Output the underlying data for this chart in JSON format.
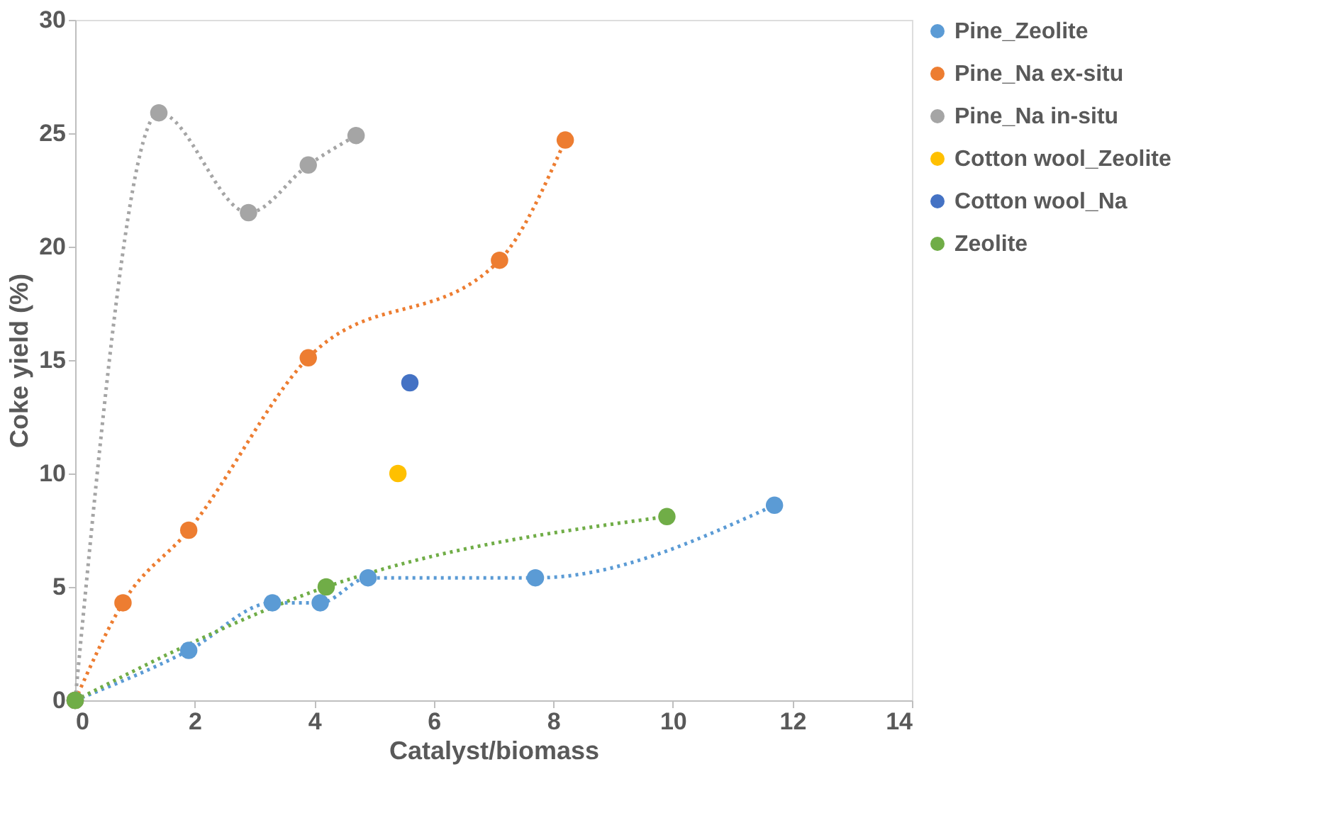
{
  "chart_data": {
    "type": "line",
    "xlabel": "Catalyst/biomass",
    "ylabel": "Coke yield (%)",
    "xlim": [
      0,
      14
    ],
    "xticks": [
      0,
      2,
      4,
      6,
      8,
      10,
      12,
      14
    ],
    "ylim": [
      0,
      30
    ],
    "yticks": [
      0,
      5,
      10,
      15,
      20,
      25,
      30
    ],
    "grid": false,
    "legend": "right",
    "marker": "circle",
    "line_style": "dotted",
    "series": [
      {
        "name": "Pine_Zeolite",
        "color": "#5b9bd5",
        "x": [
          0,
          1.9,
          3.3,
          4.1,
          4.9,
          7.7,
          11.7
        ],
        "values": [
          0,
          2.2,
          4.3,
          4.3,
          5.4,
          5.4,
          8.6
        ]
      },
      {
        "name": "Pine_Na ex-situ",
        "color": "#ed7d31",
        "x": [
          0,
          0.8,
          1.9,
          3.9,
          7.1,
          8.2
        ],
        "values": [
          0,
          4.3,
          7.5,
          15.1,
          19.4,
          24.7
        ]
      },
      {
        "name": "Pine_Na in-situ",
        "color": "#a5a5a5",
        "x": [
          0,
          1.4,
          2.9,
          3.9,
          4.7
        ],
        "values": [
          0,
          25.9,
          21.5,
          23.6,
          24.9
        ]
      },
      {
        "name": "Cotton wool_Zeolite",
        "color": "#ffc000",
        "type": "scatter",
        "x": [
          5.4
        ],
        "values": [
          10
        ]
      },
      {
        "name": "Cotton wool_Na",
        "color": "#4472c4",
        "type": "scatter",
        "x": [
          5.6
        ],
        "values": [
          14
        ]
      },
      {
        "name": "Zeolite",
        "color": "#70ad47",
        "x": [
          0,
          4.2,
          9.9
        ],
        "values": [
          0,
          5,
          8.1
        ]
      }
    ]
  }
}
